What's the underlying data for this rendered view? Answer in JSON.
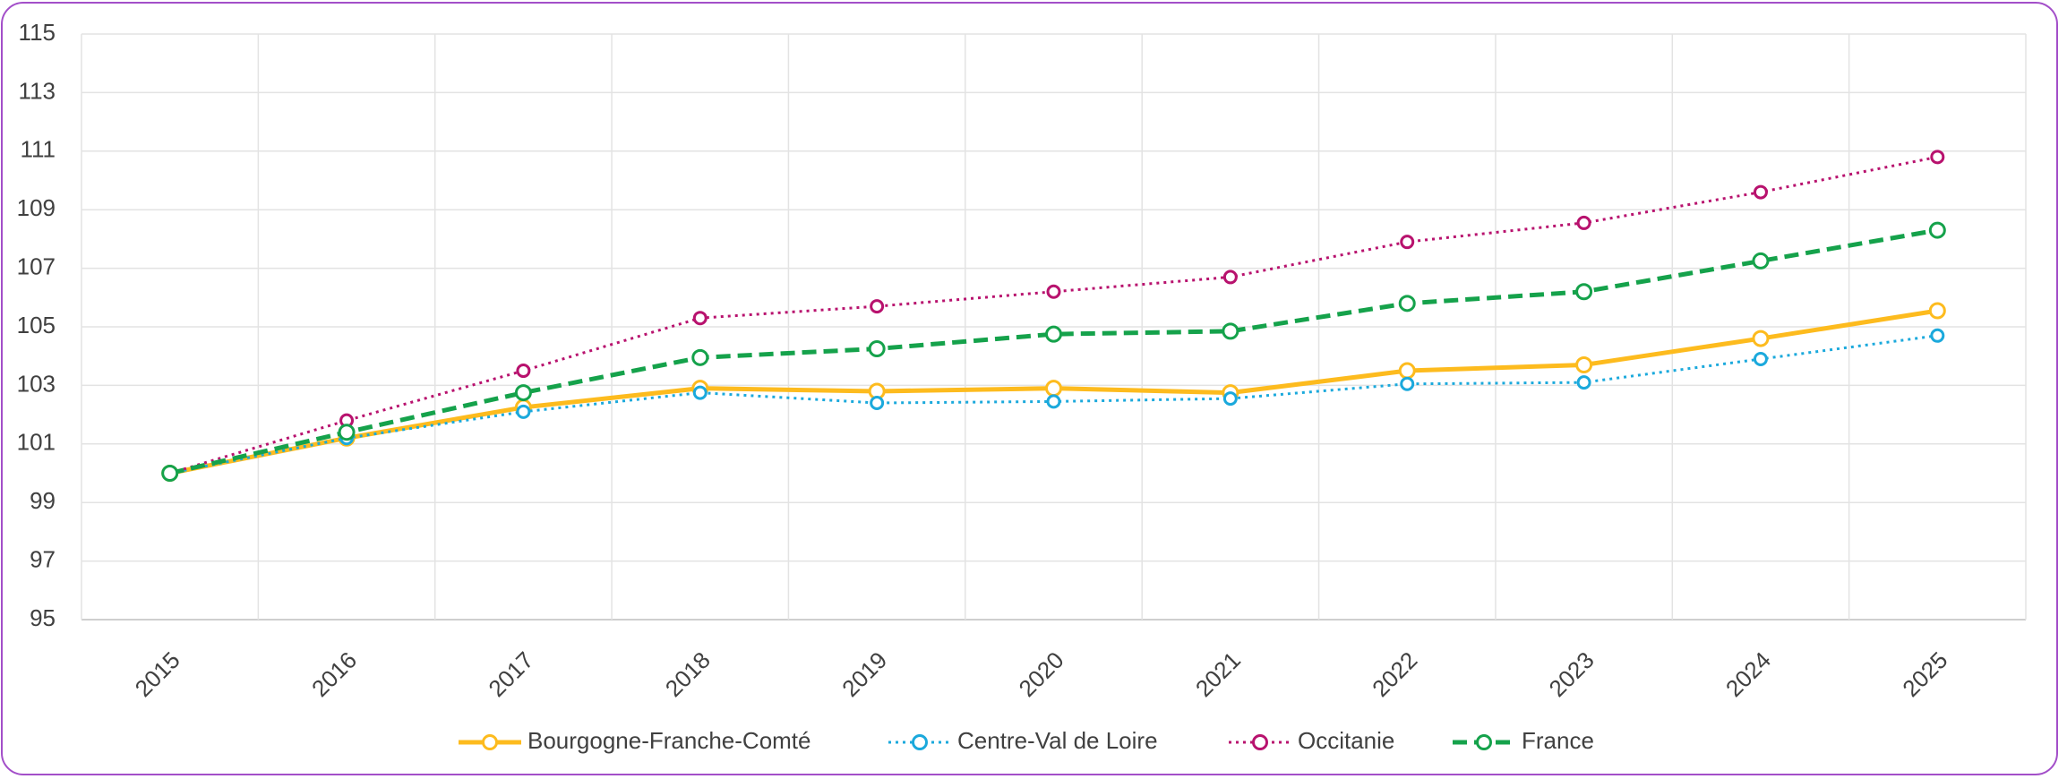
{
  "chart_data": {
    "type": "line",
    "categories": [
      "2015",
      "2016",
      "2017",
      "2018",
      "2019",
      "2020",
      "2021",
      "2022",
      "2023",
      "2024",
      "2025"
    ],
    "series": [
      {
        "name": "Bourgogne-Franche-Comté",
        "color": "#fdbb1e",
        "style": "solid",
        "values": [
          100,
          101.2,
          102.25,
          102.9,
          102.8,
          102.9,
          102.75,
          103.5,
          103.7,
          104.6,
          105.55
        ]
      },
      {
        "name": "Centre-Val de Loire",
        "color": "#1ba9dc",
        "style": "dotted",
        "values": [
          100,
          101.2,
          102.1,
          102.75,
          102.4,
          102.45,
          102.55,
          103.05,
          103.1,
          103.9,
          104.7
        ]
      },
      {
        "name": "Occitanie",
        "color": "#b8126e",
        "style": "dotted",
        "values": [
          100,
          101.8,
          103.5,
          105.3,
          105.7,
          106.2,
          106.7,
          107.9,
          108.55,
          109.6,
          110.8
        ]
      },
      {
        "name": "France",
        "color": "#15a24b",
        "style": "dashed",
        "values": [
          100,
          101.4,
          102.75,
          103.95,
          104.25,
          104.75,
          104.85,
          105.8,
          106.2,
          107.25,
          108.3
        ]
      }
    ],
    "ylim": [
      95,
      115
    ],
    "yticks": [
      95,
      97,
      99,
      101,
      103,
      105,
      107,
      109,
      111,
      113,
      115
    ],
    "grid": true,
    "legend": "bottom"
  }
}
